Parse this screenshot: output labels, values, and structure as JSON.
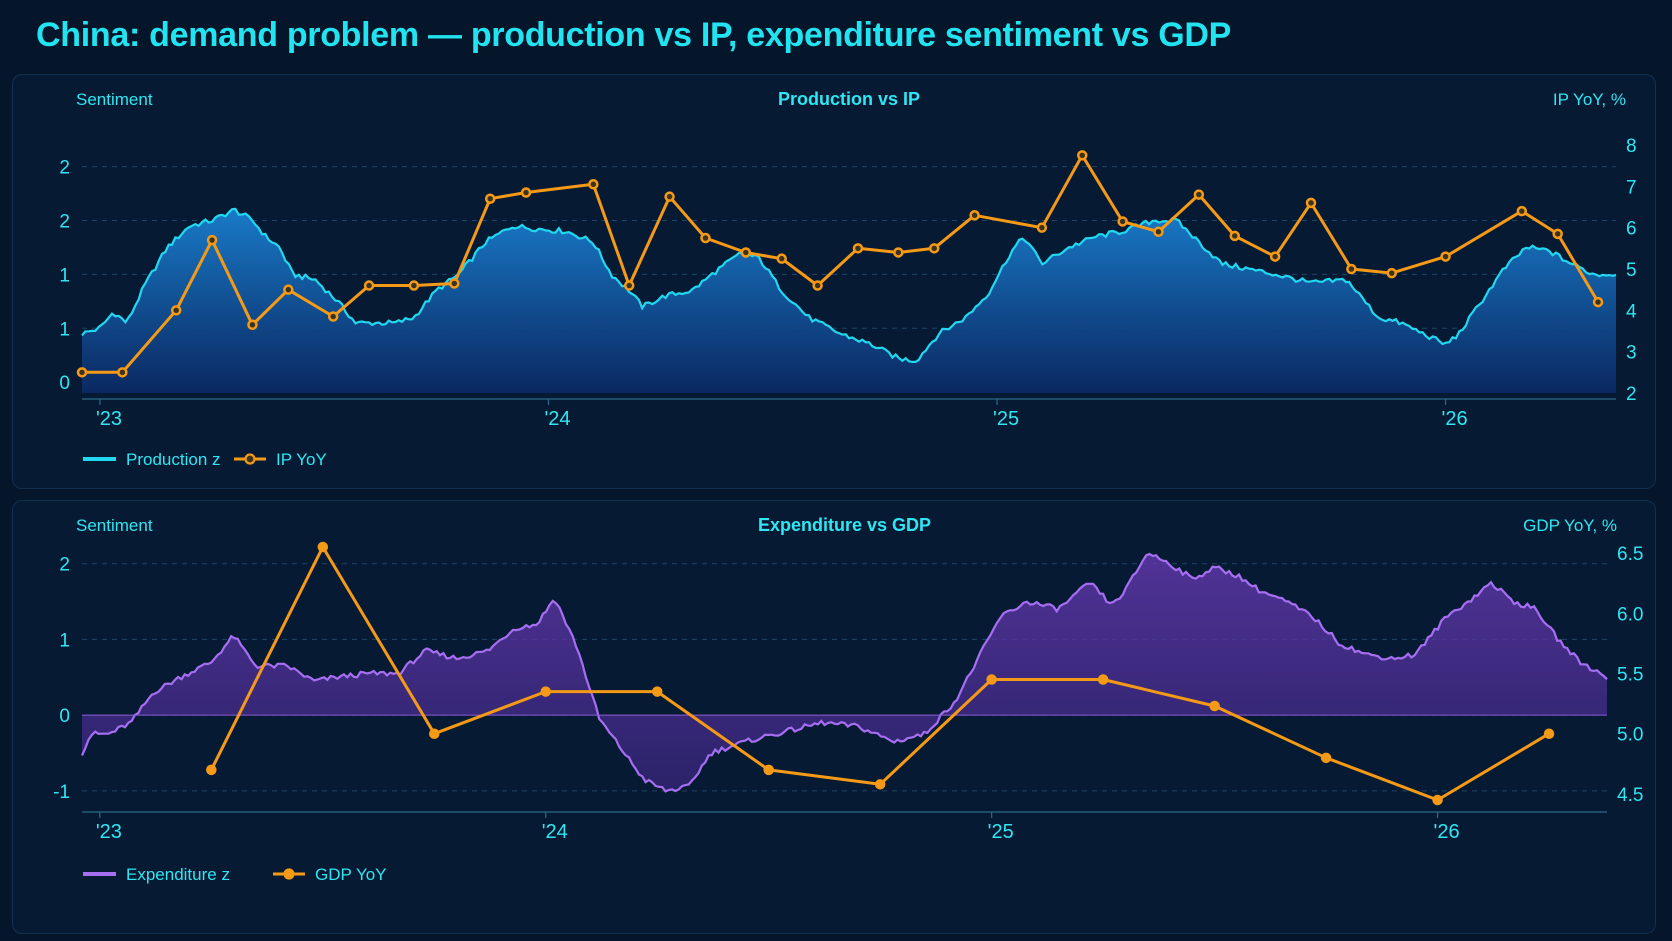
{
  "title": "China: demand problem — production vs IP, expenditure sentiment vs GDP",
  "colors": {
    "background": "#05152a",
    "panel": "#071a33",
    "text": "#2fe6f2",
    "production": "#22d8f0",
    "expenditure": "#a66ff2",
    "orange": "#f59a16"
  },
  "chart_data": [
    {
      "type": "line",
      "title": "Production vs IP",
      "ylabel": "Sentiment",
      "y2label": "IP YoY, %",
      "ylim": [
        -0.1,
        2.2
      ],
      "y2lim": [
        2,
        8
      ],
      "yticks": [
        {
          "value": 0,
          "label": "0"
        },
        {
          "value": 0.5,
          "label": "1"
        },
        {
          "value": 1,
          "label": "1"
        },
        {
          "value": 1.5,
          "label": "2"
        },
        {
          "value": 2,
          "label": "2"
        }
      ],
      "y2ticks": [
        2,
        3,
        4,
        5,
        6,
        7,
        8
      ],
      "xlim": [
        2022.96,
        2026.38
      ],
      "xticks": [
        {
          "value": 2023.0,
          "label": "'23"
        },
        {
          "value": 2024.0,
          "label": "'24"
        },
        {
          "value": 2025.0,
          "label": "'25"
        },
        {
          "value": 2026.0,
          "label": "'26"
        }
      ],
      "grid": true,
      "legend_position": "bottom-left",
      "series": [
        {
          "name": "Production z",
          "axis": "left",
          "style": "area",
          "x": [
            2022.96,
            2023.0,
            2023.03,
            2023.06,
            2023.1,
            2023.15,
            2023.2,
            2023.25,
            2023.3,
            2023.34,
            2023.37,
            2023.4,
            2023.43,
            2023.48,
            2023.53,
            2023.57,
            2023.62,
            2023.66,
            2023.7,
            2023.75,
            2023.8,
            2023.86,
            2023.92,
            2023.98,
            2024.04,
            2024.1,
            2024.14,
            2024.18,
            2024.21,
            2024.26,
            2024.32,
            2024.38,
            2024.43,
            2024.47,
            2024.52,
            2024.58,
            2024.65,
            2024.72,
            2024.78,
            2024.82,
            2024.87,
            2024.93,
            2024.98,
            2025.03,
            2025.06,
            2025.1,
            2025.16,
            2025.22,
            2025.28,
            2025.35,
            2025.4,
            2025.45,
            2025.5,
            2025.56,
            2025.62,
            2025.7,
            2025.78,
            2025.85,
            2025.9,
            2025.95,
            2026.0,
            2026.03,
            2026.08,
            2026.13,
            2026.18,
            2026.23,
            2026.28,
            2026.33,
            2026.38
          ],
          "values": [
            0.45,
            0.5,
            0.65,
            0.55,
            0.9,
            1.25,
            1.45,
            1.5,
            1.6,
            1.5,
            1.35,
            1.25,
            1.0,
            0.95,
            0.75,
            0.55,
            0.55,
            0.55,
            0.6,
            0.85,
            1.0,
            1.3,
            1.45,
            1.42,
            1.4,
            1.3,
            1.0,
            0.85,
            0.7,
            0.8,
            0.85,
            1.05,
            1.2,
            1.15,
            0.85,
            0.6,
            0.45,
            0.35,
            0.22,
            0.2,
            0.45,
            0.6,
            0.82,
            1.2,
            1.35,
            1.1,
            1.25,
            1.35,
            1.4,
            1.5,
            1.5,
            1.3,
            1.1,
            1.05,
            1.0,
            0.92,
            0.95,
            0.6,
            0.55,
            0.45,
            0.35,
            0.45,
            0.75,
            1.05,
            1.25,
            1.22,
            1.1,
            1.0,
            1.0
          ]
        },
        {
          "name": "IP YoY",
          "axis": "right",
          "style": "line-markers",
          "x": [
            2022.96,
            2023.05,
            2023.17,
            2023.25,
            2023.34,
            2023.42,
            2023.52,
            2023.6,
            2023.7,
            2023.79,
            2023.87,
            2023.95,
            2024.1,
            2024.18,
            2024.27,
            2024.35,
            2024.44,
            2024.52,
            2024.6,
            2024.69,
            2024.78,
            2024.86,
            2024.95,
            2025.1,
            2025.19,
            2025.28,
            2025.36,
            2025.45,
            2025.53,
            2025.62,
            2025.7,
            2025.79,
            2025.88,
            2026.0,
            2026.17,
            2026.25,
            2026.34
          ],
          "values": [
            2.5,
            2.5,
            4.0,
            5.7,
            3.65,
            4.5,
            3.85,
            4.6,
            4.6,
            4.65,
            6.7,
            6.85,
            7.05,
            4.6,
            6.75,
            5.75,
            5.4,
            5.25,
            4.6,
            5.5,
            5.4,
            5.5,
            6.3,
            6.0,
            7.75,
            6.15,
            5.9,
            6.8,
            5.8,
            5.3,
            6.6,
            5.0,
            4.9,
            5.3,
            6.4,
            5.85,
            4.2
          ]
        }
      ]
    },
    {
      "type": "line",
      "title": "Expenditure vs GDP",
      "ylabel": "Sentiment",
      "y2label": "GDP YoY, %",
      "ylim": [
        -1.2,
        2.3
      ],
      "y2lim": [
        4.4,
        6.6
      ],
      "yticks": [
        {
          "value": -1,
          "label": "-1"
        },
        {
          "value": 0,
          "label": "0"
        },
        {
          "value": 1,
          "label": "1"
        },
        {
          "value": 2,
          "label": "2"
        }
      ],
      "y2ticks": [
        "4.5",
        "5.0",
        "5.5",
        "6.0",
        "6.5"
      ],
      "xlim": [
        2022.96,
        2026.38
      ],
      "xticks": [
        {
          "value": 2023.0,
          "label": "'23"
        },
        {
          "value": 2024.0,
          "label": "'24"
        },
        {
          "value": 2025.0,
          "label": "'25"
        },
        {
          "value": 2026.0,
          "label": "'26"
        }
      ],
      "grid": true,
      "legend_position": "bottom-left",
      "series": [
        {
          "name": "Expenditure z",
          "axis": "left",
          "style": "area",
          "x": [
            2022.96,
            2022.98,
            2023.02,
            2023.07,
            2023.12,
            2023.18,
            2023.25,
            2023.3,
            2023.35,
            2023.42,
            2023.48,
            2023.53,
            2023.6,
            2023.67,
            2023.73,
            2023.8,
            2023.87,
            2023.93,
            2023.98,
            2024.02,
            2024.07,
            2024.12,
            2024.17,
            2024.22,
            2024.27,
            2024.32,
            2024.37,
            2024.42,
            2024.48,
            2024.55,
            2024.62,
            2024.7,
            2024.78,
            2024.85,
            2024.92,
            2024.97,
            2025.02,
            2025.08,
            2025.15,
            2025.22,
            2025.27,
            2025.3,
            2025.35,
            2025.4,
            2025.45,
            2025.5,
            2025.55,
            2025.6,
            2025.66,
            2025.72,
            2025.78,
            2025.84,
            2025.9,
            2025.95,
            2026.02,
            2026.08,
            2026.12,
            2026.17,
            2026.22,
            2026.27,
            2026.32,
            2026.38
          ],
          "values": [
            -0.5,
            -0.25,
            -0.25,
            -0.1,
            0.3,
            0.5,
            0.7,
            1.05,
            0.65,
            0.65,
            0.45,
            0.5,
            0.55,
            0.55,
            0.85,
            0.75,
            0.85,
            1.15,
            1.2,
            1.55,
            0.9,
            -0.05,
            -0.45,
            -0.85,
            -1.0,
            -0.95,
            -0.5,
            -0.4,
            -0.3,
            -0.2,
            -0.1,
            -0.15,
            -0.35,
            -0.25,
            0.2,
            0.75,
            1.3,
            1.5,
            1.4,
            1.75,
            1.45,
            1.65,
            2.15,
            2.0,
            1.8,
            1.95,
            1.85,
            1.65,
            1.5,
            1.3,
            0.95,
            0.8,
            0.75,
            0.8,
            1.3,
            1.55,
            1.75,
            1.5,
            1.4,
            1.0,
            0.7,
            0.5
          ]
        },
        {
          "name": "GDP YoY",
          "axis": "right",
          "style": "line-markers",
          "x": [
            2023.25,
            2023.5,
            2023.75,
            2024.0,
            2024.25,
            2024.5,
            2024.75,
            2025.0,
            2025.25,
            2025.5,
            2025.75,
            2026.0,
            2026.25
          ],
          "values": [
            4.7,
            6.55,
            5.0,
            5.35,
            5.35,
            4.7,
            4.58,
            5.45,
            5.45,
            5.23,
            4.8,
            4.45,
            5.0
          ]
        }
      ]
    }
  ]
}
